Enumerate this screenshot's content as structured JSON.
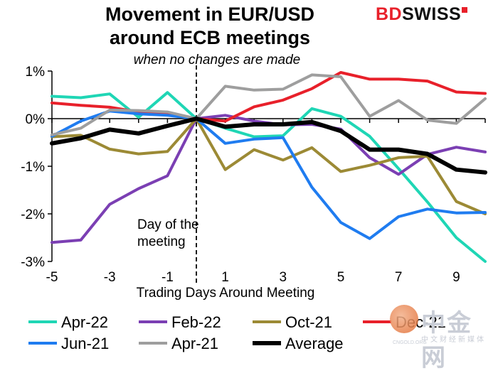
{
  "brand": {
    "part1": "BD",
    "part2": "SWISS"
  },
  "watermark": {
    "name": "中金网",
    "sub": "中文财经新媒体",
    "url": "CNGOLD.ORG"
  },
  "chart_data": {
    "type": "line",
    "title": "Movement in EUR/USD around ECB meetings",
    "subtitle": "when no changes are made",
    "xlabel": "Trading Days Around Meeting",
    "ylabel": "",
    "xlim": [
      -5,
      10
    ],
    "ylim": [
      -3,
      1
    ],
    "x_ticks": [
      -5,
      -3,
      -1,
      1,
      3,
      5,
      7,
      9
    ],
    "y_ticks": [
      {
        "v": 1,
        "label": "1%"
      },
      {
        "v": 0,
        "label": "0%"
      },
      {
        "v": -1,
        "label": "-1%"
      },
      {
        "v": -2,
        "label": "-2%"
      },
      {
        "v": -3,
        "label": "-3%"
      }
    ],
    "annotation": {
      "text_line1": "Day of the",
      "text_line2": "meeting",
      "x": 0
    },
    "legend_position": "bottom",
    "x": [
      -5,
      -4,
      -3,
      -2,
      -1,
      0,
      1,
      2,
      3,
      4,
      5,
      6,
      7,
      8,
      9,
      10
    ],
    "series": [
      {
        "name": "Apr-22",
        "color": "#1fd6b5",
        "width": 4,
        "values": [
          0.47,
          0.44,
          0.52,
          0.03,
          0.55,
          0.0,
          -0.2,
          -0.38,
          -0.36,
          0.21,
          0.05,
          -0.37,
          -1.05,
          -1.75,
          -2.5,
          -3.0
        ]
      },
      {
        "name": "Feb-22",
        "color": "#7b3fb3",
        "width": 4,
        "values": [
          -2.6,
          -2.55,
          -1.8,
          -1.47,
          -1.2,
          0.0,
          0.07,
          -0.05,
          -0.13,
          -0.12,
          -0.22,
          -0.82,
          -1.17,
          -0.75,
          -0.6,
          -0.7
        ]
      },
      {
        "name": "Oct-21",
        "color": "#9c8a35",
        "width": 4,
        "values": [
          -0.38,
          -0.35,
          -0.64,
          -0.74,
          -0.69,
          0.0,
          -1.07,
          -0.65,
          -0.87,
          -0.61,
          -1.11,
          -0.98,
          -0.82,
          -0.79,
          -1.74,
          -2.0
        ]
      },
      {
        "name": "Dec-21",
        "color": "#e8202a",
        "width": 4,
        "values": [
          0.33,
          0.28,
          0.24,
          0.14,
          0.1,
          0.0,
          -0.05,
          0.25,
          0.39,
          0.63,
          0.97,
          0.83,
          0.83,
          0.79,
          0.56,
          0.53
        ]
      },
      {
        "name": "Jun-21",
        "color": "#1f7cf0",
        "width": 4,
        "values": [
          -0.37,
          -0.05,
          0.16,
          0.1,
          0.07,
          0.0,
          -0.52,
          -0.43,
          -0.4,
          -1.44,
          -2.18,
          -2.52,
          -2.06,
          -1.9,
          -1.98,
          -1.97
        ]
      },
      {
        "name": "Apr-21",
        "color": "#9e9e9e",
        "width": 4,
        "values": [
          -0.34,
          -0.2,
          0.18,
          0.17,
          0.14,
          0.0,
          0.68,
          0.6,
          0.62,
          0.92,
          0.88,
          0.05,
          0.38,
          -0.03,
          -0.1,
          0.42
        ]
      },
      {
        "name": "Average",
        "color": "#000000",
        "width": 6,
        "values": [
          -0.52,
          -0.41,
          -0.23,
          -0.31,
          -0.15,
          0.0,
          -0.17,
          -0.12,
          -0.12,
          -0.07,
          -0.26,
          -0.65,
          -0.65,
          -0.74,
          -1.07,
          -1.13
        ]
      }
    ]
  }
}
